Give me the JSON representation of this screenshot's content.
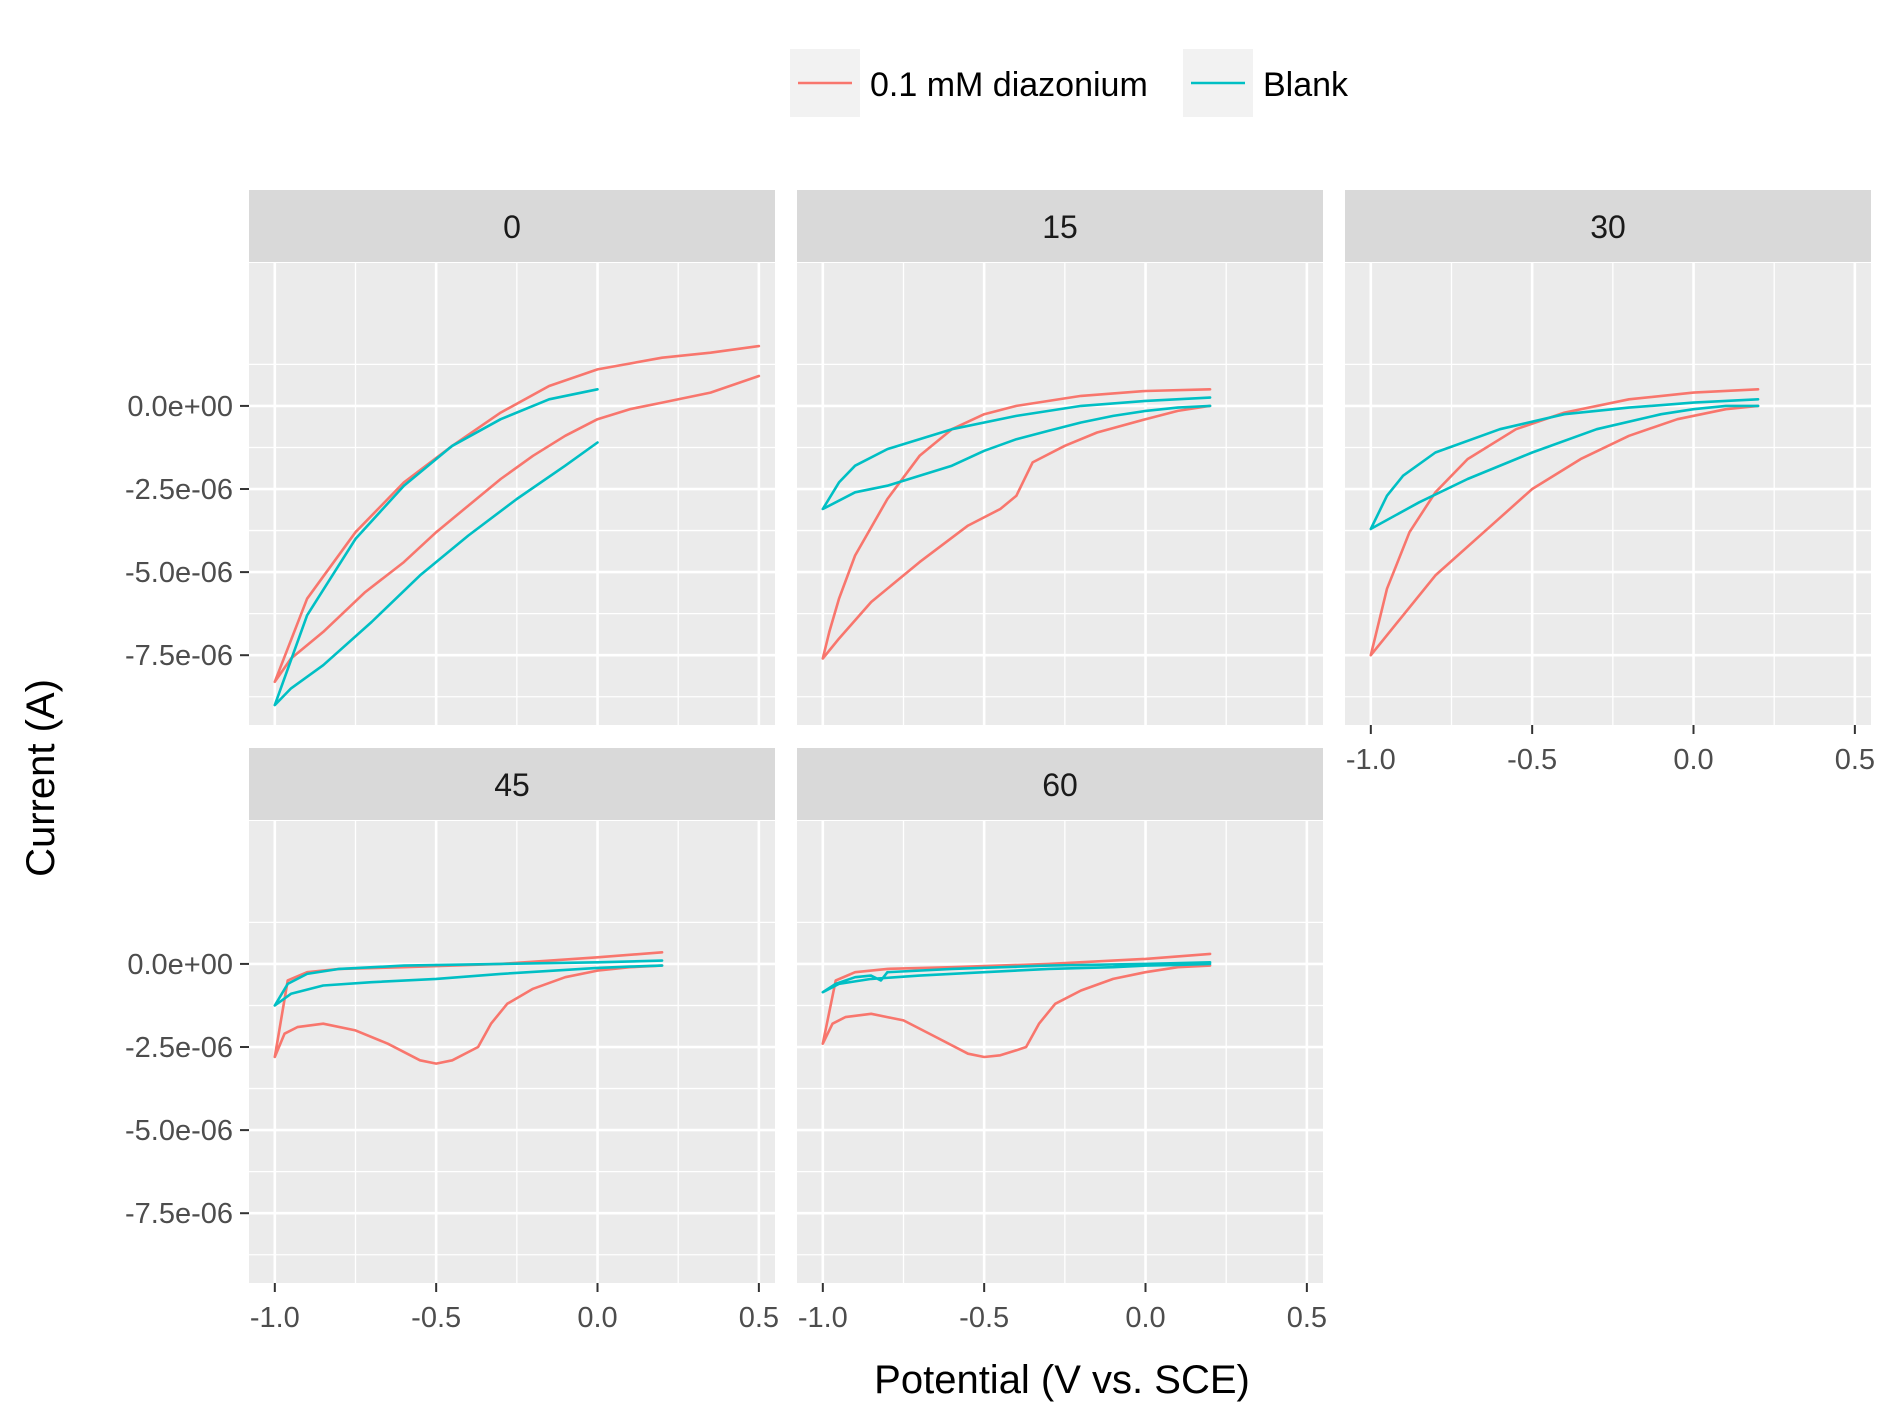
{
  "chart_data": {
    "type": "line",
    "xlabel": "Potential (V vs. SCE)",
    "ylabel": "Current (A)",
    "xlim": [
      -1.08,
      0.55
    ],
    "ylim": [
      -9.6e-06,
      4.3e-06
    ],
    "x_ticks": [
      -1.0,
      -0.5,
      0.0,
      0.5
    ],
    "x_tick_labels": [
      "-1.0",
      "-0.5",
      "0.0",
      "0.5"
    ],
    "y_ticks": [
      0.0,
      -2.5e-06,
      -5e-06,
      -7.5e-06
    ],
    "y_tick_labels": [
      "0.0e+00",
      "-2.5e-06",
      "-5.0e-06",
      "-7.5e-06"
    ],
    "grid": true,
    "legend_position": "top",
    "legend": [
      {
        "label": "0.1 mM diazonium",
        "color": "#F8766D"
      },
      {
        "label": "Blank",
        "color": "#00BFC4"
      }
    ],
    "panels": [
      {
        "strip": "0",
        "series": [
          {
            "name": "0.1 mM diazonium",
            "color": "#F8766D",
            "x": [
              0.5,
              0.35,
              0.2,
              0.0,
              -0.15,
              -0.3,
              -0.45,
              -0.6,
              -0.75,
              -0.9,
              -1.0,
              -0.95,
              -0.85,
              -0.72,
              -0.6,
              -0.5,
              -0.4,
              -0.3,
              -0.2,
              -0.1,
              0.0,
              0.1,
              0.2,
              0.35,
              0.5
            ],
            "y": [
              1.8e-06,
              1.6e-06,
              1.45e-06,
              1.1e-06,
              6e-07,
              -2e-07,
              -1.2e-06,
              -2.3e-06,
              -3.8e-06,
              -5.8e-06,
              -8.3e-06,
              -7.6e-06,
              -6.8e-06,
              -5.6e-06,
              -4.7e-06,
              -3.8e-06,
              -3e-06,
              -2.2e-06,
              -1.5e-06,
              -9e-07,
              -4e-07,
              -1e-07,
              1e-07,
              4e-07,
              9e-07
            ]
          },
          {
            "name": "Blank",
            "color": "#00BFC4",
            "x": [
              0.0,
              -0.15,
              -0.3,
              -0.45,
              -0.6,
              -0.75,
              -0.9,
              -1.0,
              -0.95,
              -0.85,
              -0.7,
              -0.55,
              -0.4,
              -0.25,
              -0.1,
              0.0
            ],
            "y": [
              5e-07,
              2e-07,
              -4e-07,
              -1.2e-06,
              -2.4e-06,
              -4e-06,
              -6.3e-06,
              -9e-06,
              -8.5e-06,
              -7.8e-06,
              -6.5e-06,
              -5.1e-06,
              -3.9e-06,
              -2.8e-06,
              -1.8e-06,
              -1.1e-06
            ]
          }
        ]
      },
      {
        "strip": "15",
        "series": [
          {
            "name": "0.1 mM diazonium",
            "color": "#F8766D",
            "x": [
              0.2,
              0.0,
              -0.2,
              -0.4,
              -0.5,
              -0.6,
              -0.7,
              -0.8,
              -0.9,
              -0.95,
              -0.98,
              -1.0,
              -0.95,
              -0.85,
              -0.7,
              -0.55,
              -0.45,
              -0.4,
              -0.35,
              -0.25,
              -0.15,
              0.0,
              0.1,
              0.2
            ],
            "y": [
              5e-07,
              4.5e-07,
              3e-07,
              0.0,
              -2.5e-07,
              -7e-07,
              -1.5e-06,
              -2.8e-06,
              -4.5e-06,
              -5.8e-06,
              -6.8e-06,
              -7.6e-06,
              -7e-06,
              -5.9e-06,
              -4.7e-06,
              -3.6e-06,
              -3.1e-06,
              -2.7e-06,
              -1.7e-06,
              -1.2e-06,
              -8e-07,
              -4e-07,
              -1.5e-07,
              0.0
            ]
          },
          {
            "name": "Blank",
            "color": "#00BFC4",
            "x": [
              0.2,
              0.0,
              -0.2,
              -0.4,
              -0.6,
              -0.8,
              -0.9,
              -0.95,
              -1.0,
              -0.9,
              -0.8,
              -0.7,
              -0.6,
              -0.5,
              -0.4,
              -0.3,
              -0.2,
              -0.1,
              0.0,
              0.1,
              0.2
            ],
            "y": [
              2.5e-07,
              1.5e-07,
              0.0,
              -3e-07,
              -7e-07,
              -1.3e-06,
              -1.8e-06,
              -2.3e-06,
              -3.1e-06,
              -2.6e-06,
              -2.4e-06,
              -2.1e-06,
              -1.8e-06,
              -1.35e-06,
              -1e-06,
              -7.5e-07,
              -5e-07,
              -3e-07,
              -1.5e-07,
              -5e-08,
              0.0
            ]
          }
        ]
      },
      {
        "strip": "30",
        "series": [
          {
            "name": "0.1 mM diazonium",
            "color": "#F8766D",
            "x": [
              0.2,
              0.0,
              -0.2,
              -0.4,
              -0.55,
              -0.7,
              -0.8,
              -0.88,
              -0.95,
              -1.0,
              -0.9,
              -0.8,
              -0.65,
              -0.5,
              -0.35,
              -0.2,
              -0.05,
              0.1,
              0.2
            ],
            "y": [
              5e-07,
              4e-07,
              2e-07,
              -2e-07,
              -7e-07,
              -1.6e-06,
              -2.6e-06,
              -3.8e-06,
              -5.5e-06,
              -7.5e-06,
              -6.3e-06,
              -5.1e-06,
              -3.8e-06,
              -2.5e-06,
              -1.6e-06,
              -9e-07,
              -4e-07,
              -1e-07,
              0.0
            ]
          },
          {
            "name": "Blank",
            "color": "#00BFC4",
            "x": [
              0.2,
              0.0,
              -0.2,
              -0.4,
              -0.6,
              -0.8,
              -0.9,
              -0.95,
              -1.0,
              -0.85,
              -0.7,
              -0.5,
              -0.3,
              -0.1,
              0.0,
              0.1,
              0.2
            ],
            "y": [
              2e-07,
              1e-07,
              -5e-08,
              -2.5e-07,
              -7e-07,
              -1.4e-06,
              -2.1e-06,
              -2.7e-06,
              -3.7e-06,
              -2.9e-06,
              -2.2e-06,
              -1.4e-06,
              -7e-07,
              -2.5e-07,
              -1e-07,
              0.0,
              0.0
            ]
          }
        ]
      },
      {
        "strip": "45",
        "series": [
          {
            "name": "0.1 mM diazonium",
            "color": "#F8766D",
            "x": [
              0.2,
              0.0,
              -0.3,
              -0.6,
              -0.8,
              -0.9,
              -0.96,
              -1.0,
              -0.97,
              -0.93,
              -0.85,
              -0.75,
              -0.65,
              -0.55,
              -0.5,
              -0.45,
              -0.4,
              -0.37,
              -0.33,
              -0.28,
              -0.2,
              -0.1,
              0.0,
              0.1,
              0.2
            ],
            "y": [
              3.5e-07,
              2e-07,
              0.0,
              -1e-07,
              -1.5e-07,
              -2.5e-07,
              -5e-07,
              -2.8e-06,
              -2.1e-06,
              -1.9e-06,
              -1.8e-06,
              -2e-06,
              -2.4e-06,
              -2.9e-06,
              -3e-06,
              -2.9e-06,
              -2.65e-06,
              -2.5e-06,
              -1.8e-06,
              -1.2e-06,
              -7.5e-07,
              -4e-07,
              -2e-07,
              -1e-07,
              -5e-08
            ]
          },
          {
            "name": "Blank",
            "color": "#00BFC4",
            "x": [
              0.2,
              0.0,
              -0.3,
              -0.6,
              -0.8,
              -0.9,
              -0.96,
              -1.0,
              -0.95,
              -0.85,
              -0.7,
              -0.5,
              -0.3,
              -0.1,
              0.0,
              0.1,
              0.2
            ],
            "y": [
              1e-07,
              5e-08,
              0.0,
              -5e-08,
              -1.5e-07,
              -3e-07,
              -6e-07,
              -1.25e-06,
              -9e-07,
              -6.5e-07,
              -5.5e-07,
              -4.5e-07,
              -3e-07,
              -1.8e-07,
              -1.2e-07,
              -8e-08,
              -5e-08
            ]
          }
        ]
      },
      {
        "strip": "60",
        "series": [
          {
            "name": "0.1 mM diazonium",
            "color": "#F8766D",
            "x": [
              0.2,
              0.0,
              -0.3,
              -0.6,
              -0.8,
              -0.9,
              -0.96,
              -1.0,
              -0.97,
              -0.93,
              -0.85,
              -0.75,
              -0.65,
              -0.55,
              -0.5,
              -0.45,
              -0.4,
              -0.37,
              -0.33,
              -0.28,
              -0.2,
              -0.1,
              0.0,
              0.1,
              0.2
            ],
            "y": [
              3e-07,
              1.5e-07,
              0.0,
              -1e-07,
              -1.5e-07,
              -2.5e-07,
              -5e-07,
              -2.4e-06,
              -1.8e-06,
              -1.6e-06,
              -1.5e-06,
              -1.7e-06,
              -2.2e-06,
              -2.7e-06,
              -2.8e-06,
              -2.75e-06,
              -2.6e-06,
              -2.5e-06,
              -1.8e-06,
              -1.2e-06,
              -8e-07,
              -4.5e-07,
              -2.5e-07,
              -1e-07,
              -5e-08
            ]
          },
          {
            "name": "Blank",
            "color": "#00BFC4",
            "x": [
              0.2,
              0.0,
              -0.3,
              -0.6,
              -0.8,
              -0.82,
              -0.85,
              -0.9,
              -0.96,
              -1.0,
              -0.95,
              -0.85,
              -0.7,
              -0.5,
              -0.3,
              -0.1,
              0.0,
              0.1,
              0.2
            ],
            "y": [
              5e-08,
              0.0,
              -5e-08,
              -1.5e-07,
              -2.5e-07,
              -5e-07,
              -3.5e-07,
              -4e-07,
              -6e-07,
              -8.5e-07,
              -6e-07,
              -4.5e-07,
              -3.5e-07,
              -2.5e-07,
              -1.5e-07,
              -1e-07,
              -5e-08,
              -3e-08,
              0.0
            ]
          }
        ]
      }
    ]
  }
}
